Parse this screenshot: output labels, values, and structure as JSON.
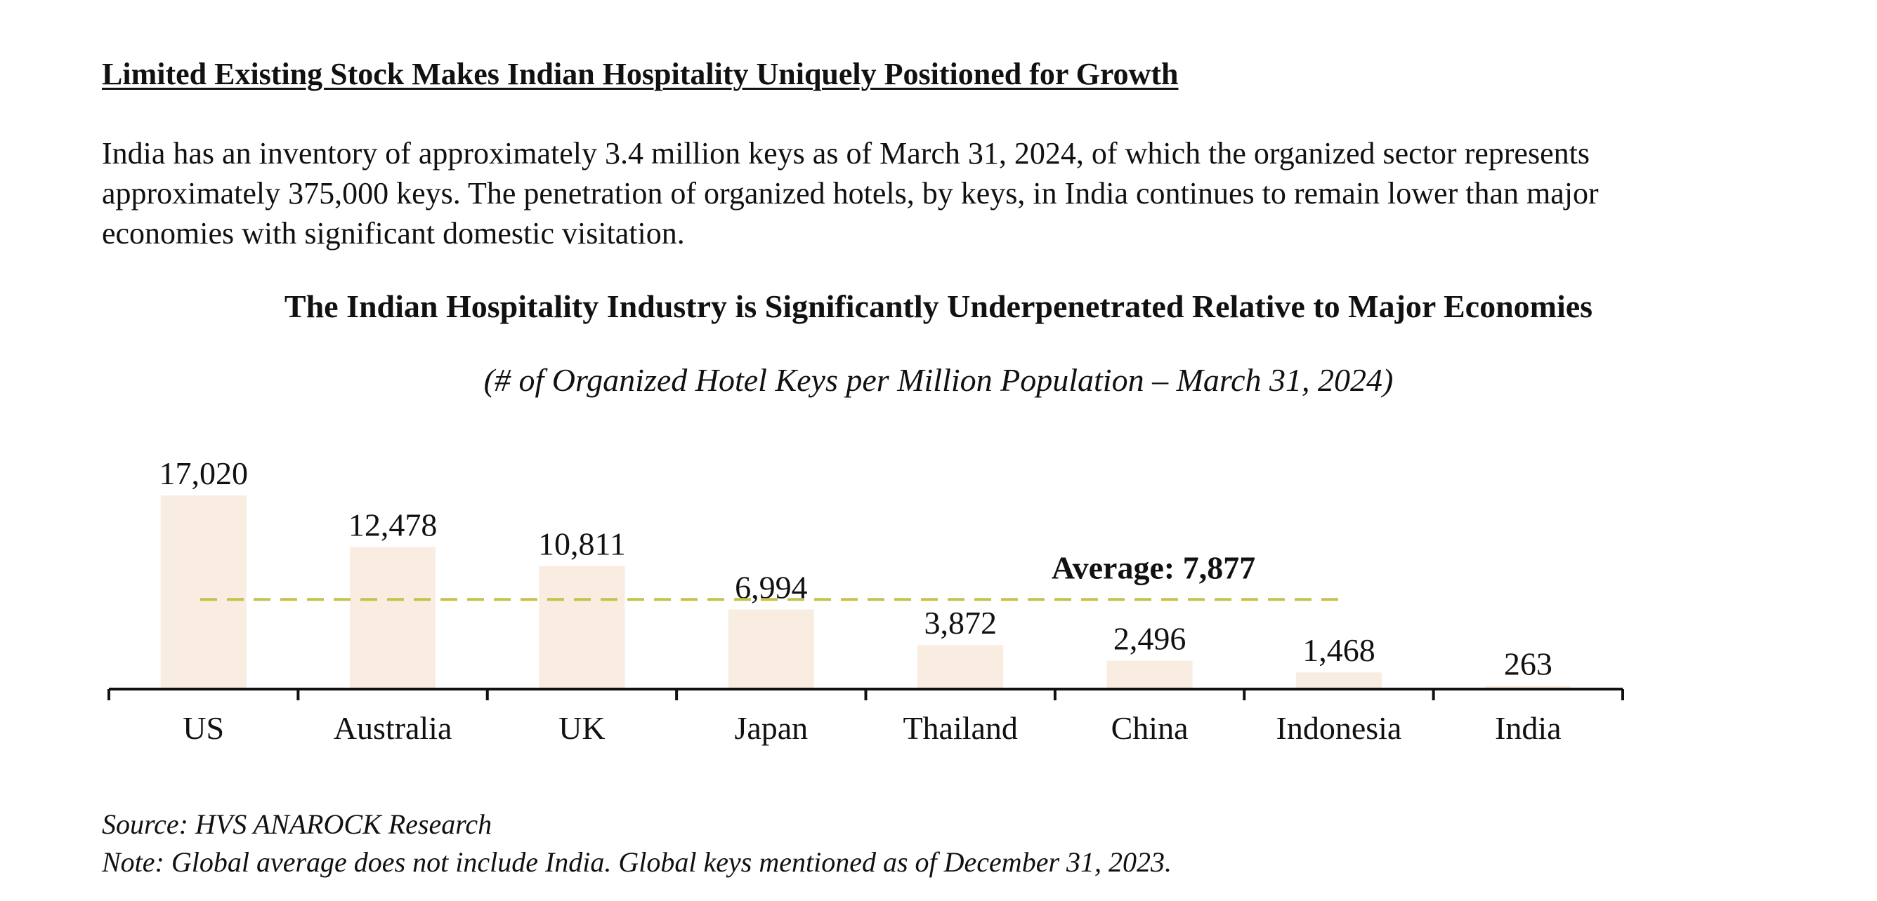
{
  "section": {
    "heading": "Limited Existing Stock Makes Indian Hospitality Uniquely Positioned for Growth",
    "intro": "India has an inventory of approximately 3.4 million keys as of March 31, 2024, of which the organized sector represents approximately 375,000 keys. The penetration of organized hotels, by keys, in India continues to remain lower than major economies with significant domestic visitation."
  },
  "chart_data": {
    "type": "bar",
    "title": "The Indian Hospitality Industry is Significantly Underpenetrated Relative to Major Economies",
    "subtitle": "(# of Organized Hotel Keys per Million Population – March 31, 2024)",
    "categories": [
      "US",
      "Australia",
      "UK",
      "Japan",
      "Thailand",
      "China",
      "Indonesia",
      "India"
    ],
    "values": [
      17020,
      12478,
      10811,
      6994,
      3872,
      2496,
      1468,
      263
    ],
    "value_labels": [
      "17,020",
      "12,478",
      "10,811",
      "6,994",
      "3,872",
      "2,496",
      "1,468",
      "263"
    ],
    "average": {
      "value": 7877,
      "label": "Average: 7,877"
    },
    "xlabel": "",
    "ylabel": "",
    "ylim": [
      0,
      17020
    ],
    "grid": false,
    "colors": {
      "bar": "#f8ede0",
      "average_line": "#c3c24a",
      "axis": "#111111"
    }
  },
  "footer": {
    "source": "Source: HVS ANAROCK Research",
    "note": "Note: Global average does not include India. Global keys mentioned as of December 31, 2023."
  }
}
